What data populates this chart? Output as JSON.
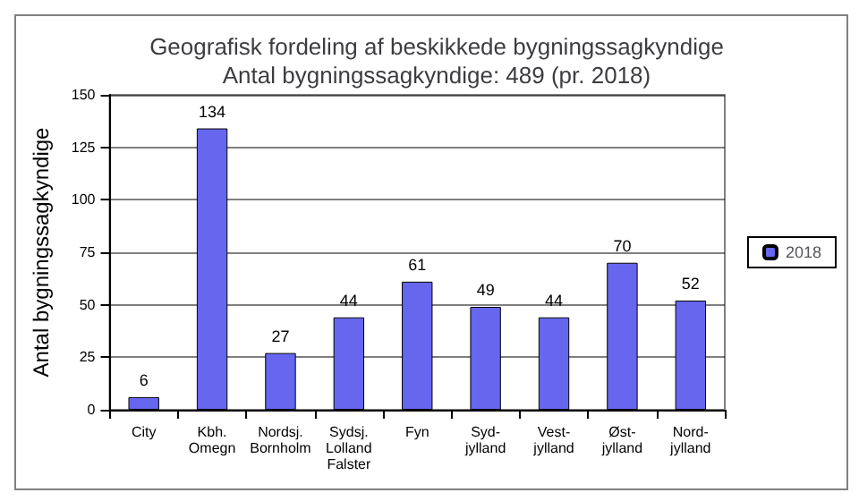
{
  "chart_data": {
    "type": "bar",
    "title": "Geografisk fordeling af beskikkede bygningssagkyndige\nAntal bygningssagkyndige: 489 (pr. 2018)",
    "ylabel": "Antal bygningssagkyndige",
    "categories": [
      "City",
      "Kbh.\nOmegn",
      "Nordsj.\nBornholm",
      "Sydsj.\nLolland\nFalster",
      "Fyn",
      "Syd-\njylland",
      "Vest-\njylland",
      "Øst-\njylland",
      "Nord-\njylland"
    ],
    "series": [
      {
        "name": "2018",
        "color": "#6666ee",
        "values": [
          6,
          134,
          27,
          44,
          61,
          49,
          44,
          70,
          52
        ]
      }
    ],
    "ylim": [
      0,
      150
    ],
    "yticks": [
      0,
      25,
      50,
      75,
      100,
      125,
      150
    ],
    "grid": "y",
    "legend": "right",
    "data_labels": true
  }
}
